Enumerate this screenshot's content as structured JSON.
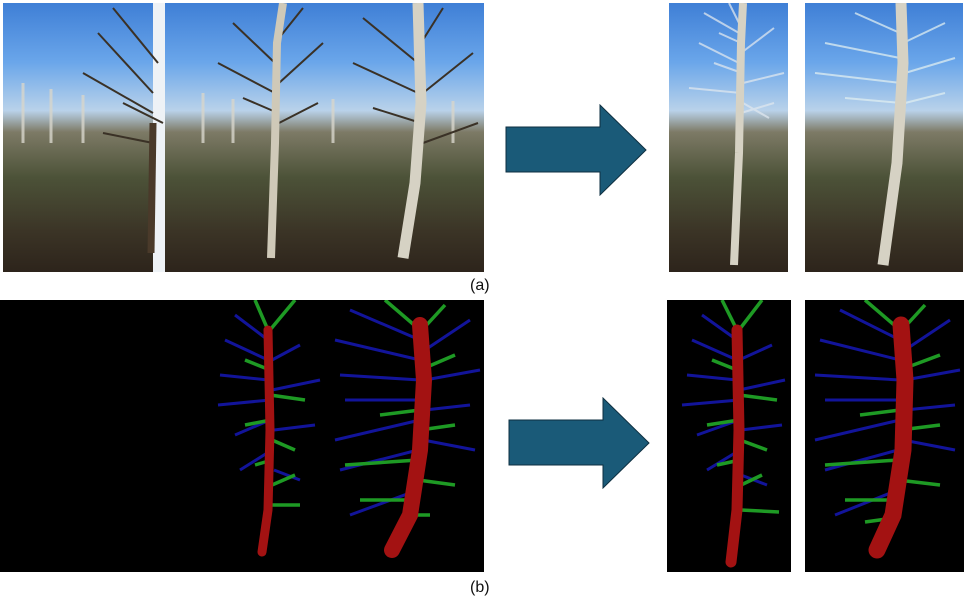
{
  "captions": {
    "a": "(a)",
    "b": "(b)"
  },
  "colors": {
    "arrow": "#1a5a78",
    "trunk": "#a31212",
    "branch_blue": "#12149a",
    "branch_green": "#1e9a24"
  },
  "icons": {
    "process_arrow": "right-arrow-icon"
  }
}
